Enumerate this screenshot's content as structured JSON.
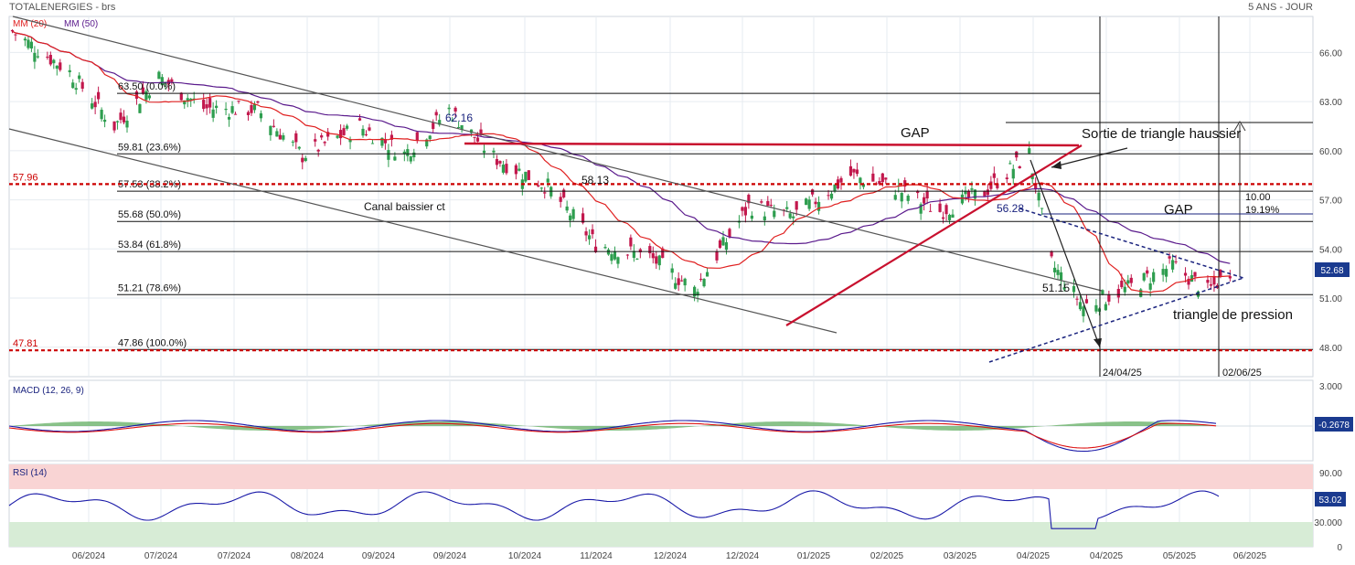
{
  "header": {
    "title": "TOTALENERGIES - brs",
    "period": "5 ANS - JOUR"
  },
  "chart_data": [
    {
      "type": "candlestick",
      "panel": "price",
      "legend": [
        {
          "name": "MM (20)",
          "color": "#e02020"
        },
        {
          "name": "MM (50)",
          "color": "#5a1a8c"
        }
      ],
      "y_axis": {
        "range": [
          46.2,
          68.2
        ],
        "ticks": [
          "48.00",
          "51.00",
          "54.00",
          "57.00",
          "60.00",
          "63.00",
          "66.00"
        ],
        "side": "right"
      },
      "last_price": "52.68",
      "fibonacci": [
        {
          "label": "63.50  (0.0%)",
          "value": 63.5
        },
        {
          "label": "59.81  (23.6%)",
          "value": 59.81
        },
        {
          "label": "57.53  (38.2%)",
          "value": 57.53
        },
        {
          "label": "55.68  (50.0%)",
          "value": 55.68
        },
        {
          "label": "53.84  (61.8%)",
          "value": 53.84
        },
        {
          "label": "51.21  (78.6%)",
          "value": 51.21
        },
        {
          "label": "47.86  (100.0%)",
          "value": 47.86
        }
      ],
      "dotted_levels": [
        {
          "label": "57.96",
          "value": 57.96,
          "color": "#cc0000"
        },
        {
          "label": "47.81",
          "value": 47.81,
          "color": "#cc0000"
        }
      ],
      "annotations": {
        "gap_1": "GAP",
        "gap_2": "GAP",
        "breakout": "Sortie de triangle haussier",
        "channel": "Canal baissier ct",
        "triangle": "triangle de pression",
        "p_6216": "62.16",
        "p_5813": "58.13",
        "p_5628": "56.28",
        "p_5115": "51.15",
        "target_points": "10.00",
        "target_pct": "19.19%",
        "date_1": "24/04/25",
        "date_2": "02/06/25"
      },
      "approx_close_path": [
        [
          "2024-05-16",
          67.3
        ],
        [
          "2024-06-03",
          64.8
        ],
        [
          "2024-06-17",
          61.5
        ],
        [
          "2024-07-01",
          64.5
        ],
        [
          "2024-07-15",
          62.6
        ],
        [
          "2024-08-01",
          62.5
        ],
        [
          "2024-08-15",
          59.7
        ],
        [
          "2024-09-02",
          61.5
        ],
        [
          "2024-09-16",
          59.8
        ],
        [
          "2024-09-30",
          62.5
        ],
        [
          "2024-10-14",
          59.6
        ],
        [
          "2024-10-31",
          57.8
        ],
        [
          "2024-11-15",
          54.3
        ],
        [
          "2024-12-02",
          53.5
        ],
        [
          "2024-12-16",
          51.5
        ],
        [
          "2025-01-02",
          56.6
        ],
        [
          "2025-01-16",
          56.0
        ],
        [
          "2025-02-03",
          58.5
        ],
        [
          "2025-02-17",
          57.7
        ],
        [
          "2025-03-03",
          56.3
        ],
        [
          "2025-03-17",
          57.5
        ],
        [
          "2025-03-31",
          59.8
        ],
        [
          "2025-04-07",
          53.1
        ],
        [
          "2025-04-17",
          50.5
        ],
        [
          "2025-05-01",
          51.6
        ],
        [
          "2025-05-15",
          53.0
        ],
        [
          "2025-05-26",
          51.4
        ],
        [
          "2025-06-02",
          52.68
        ]
      ]
    },
    {
      "type": "line",
      "panel": "macd",
      "label": "MACD (12, 26, 9)",
      "y_axis": {
        "ticks": [
          "3.000"
        ]
      },
      "last_value": "-0.2678"
    },
    {
      "type": "line",
      "panel": "rsi",
      "label": "RSI (14)",
      "y_axis": {
        "ticks": [
          "90.00",
          "30.000",
          "0"
        ]
      },
      "overbought": 70,
      "oversold": 30,
      "last_value": "53.02"
    }
  ],
  "x_axis": {
    "ticks": [
      "06/2024",
      "07/2024",
      "07/2024",
      "08/2024",
      "09/2024",
      "09/2024",
      "10/2024",
      "11/2024",
      "12/2024",
      "12/2024",
      "01/2025",
      "02/2025",
      "03/2025",
      "04/2025",
      "04/2025",
      "05/2025",
      "06/2025"
    ]
  }
}
